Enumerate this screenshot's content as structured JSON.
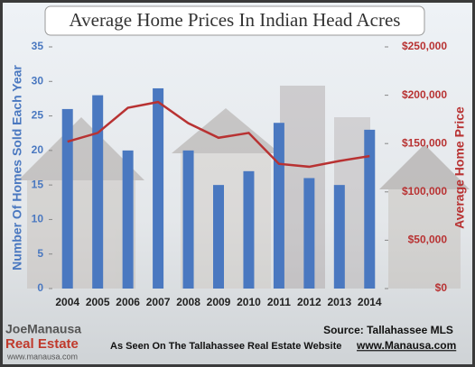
{
  "chart_data": {
    "type": "bar_line",
    "title": "Average Home Prices In Indian Head Acres",
    "categories": [
      "2004",
      "2005",
      "2006",
      "2007",
      "2008",
      "2009",
      "2010",
      "2011",
      "2012",
      "2013",
      "2014"
    ],
    "y_label": "Number Of Homes Sold Each Year",
    "y2_label": "Average Home Price",
    "series": [
      {
        "name": "Homes Sold",
        "type": "bar",
        "color": "#4a78c0",
        "values": [
          26,
          28,
          20,
          29,
          20,
          15,
          17,
          24,
          16,
          15,
          23
        ]
      },
      {
        "name": "Average Price",
        "type": "line",
        "axis": "y2",
        "color": "#b83232",
        "values": [
          152000,
          161000,
          187000,
          193000,
          171000,
          156000,
          161000,
          129000,
          126000,
          132000,
          137000
        ]
      }
    ],
    "ylim": [
      0,
      35
    ],
    "yticks": [
      0,
      5,
      10,
      15,
      20,
      25,
      30,
      35
    ],
    "y2lim": [
      0,
      250000
    ],
    "y2ticks": [
      {
        "value": 0,
        "label": "$0"
      },
      {
        "value": 50000,
        "label": "$50,000"
      },
      {
        "value": 100000,
        "label": "$100,000"
      },
      {
        "value": 150000,
        "label": "$150,000"
      },
      {
        "value": 200000,
        "label": "$200,000"
      },
      {
        "value": 250000,
        "label": "$250,000"
      }
    ],
    "source": "Source: Tallahassee MLS"
  },
  "footer": {
    "text": "As Seen On The Tallahassee Real Estate Website",
    "url": "www.Manausa.com"
  },
  "logo": {
    "name": "JoeManausa",
    "sub": "Real Estate",
    "url": "www.manausa.com"
  }
}
